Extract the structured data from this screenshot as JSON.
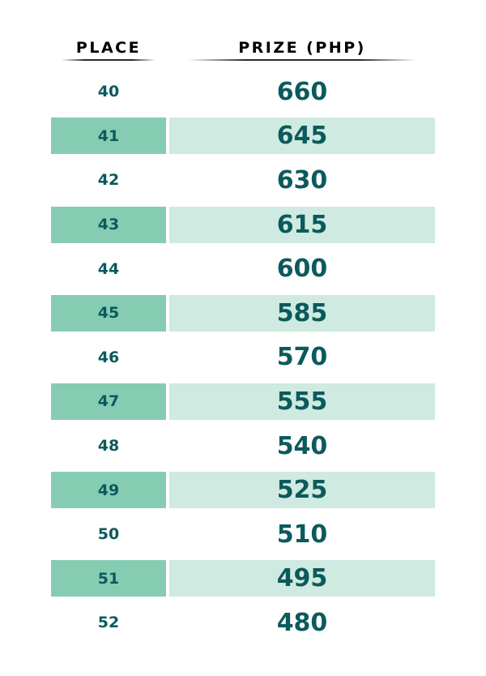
{
  "header": {
    "place_label": "PLACE",
    "prize_label": "PRIZE (PHP)"
  },
  "colors": {
    "text": "#0b5a5c",
    "place_band": "#86ccb3",
    "prize_band": "#cfeae0"
  },
  "rows": [
    {
      "place": "40",
      "prize": "660"
    },
    {
      "place": "41",
      "prize": "645"
    },
    {
      "place": "42",
      "prize": "630"
    },
    {
      "place": "43",
      "prize": "615"
    },
    {
      "place": "44",
      "prize": "600"
    },
    {
      "place": "45",
      "prize": "585"
    },
    {
      "place": "46",
      "prize": "570"
    },
    {
      "place": "47",
      "prize": "555"
    },
    {
      "place": "48",
      "prize": "540"
    },
    {
      "place": "49",
      "prize": "525"
    },
    {
      "place": "50",
      "prize": "510"
    },
    {
      "place": "51",
      "prize": "495"
    },
    {
      "place": "52",
      "prize": "480"
    }
  ]
}
